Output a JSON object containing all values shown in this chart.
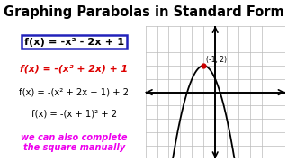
{
  "title": "Graphing Parabolas in Standard Form",
  "title_fontsize": 10.5,
  "title_fontweight": "bold",
  "bg_color": "#ffffff",
  "divider_y": 0.855,
  "left_panel": {
    "eq1": "f(x) = -x² - 2x + 1",
    "eq1_color": "#000000",
    "eq1_box_color": "#2222bb",
    "eq2": "f(x) = -(x² + 2x) + 1",
    "eq2_color": "#dd0000",
    "eq3": "f(x) = -(x² + 2x + 1) + 2",
    "eq3_color": "#000000",
    "eq4": "f(x) = -(x + 1)² + 2",
    "eq4_color": "#000000",
    "note": "we can also complete\nthe square manually",
    "note_color": "#ee00ee"
  },
  "graph": {
    "xlim": [
      -6,
      6
    ],
    "ylim": [
      -5,
      5
    ],
    "x_axis_y": 0,
    "grid_color": "#bbbbbb",
    "axis_color": "#000000",
    "curve_color": "#000000",
    "vertex_x": -1,
    "vertex_y": 2,
    "vertex_label": "(-1, 2)",
    "vertex_dot_color": "#cc0000"
  }
}
